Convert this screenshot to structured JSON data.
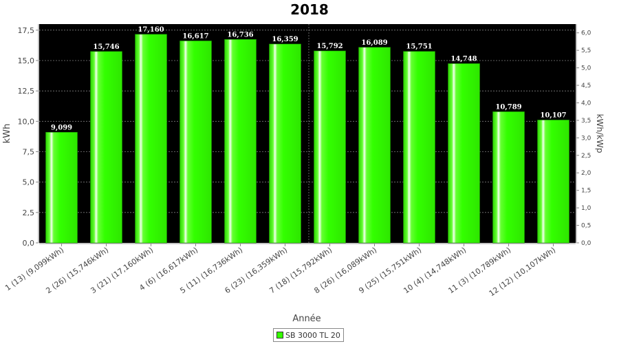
{
  "chart_data": {
    "type": "bar",
    "title": "2018",
    "xlabel": "Année",
    "ylabel": "kWh",
    "y2label": "kWh/kWp",
    "categories": [
      "1 (13)  (9,099kWh)",
      "2 (26)  (15,746kWh)",
      "3 (21)  (17,160kWh)",
      "4 (6)  (16,617kWh)",
      "5 (11)  (16,736kWh)",
      "6 (23)  (16,359kWh)",
      "7 (18)  (15,792kWh)",
      "8 (26)  (16,089kWh)",
      "9 (25)  (15,751kWh)",
      "10 (4)  (14,748kWh)",
      "11 (3)  (10,789kWh)",
      "12 (12)  (10,107kWh)"
    ],
    "series": [
      {
        "name": "SB 3000 TL 20",
        "values": [
          9.099,
          15.746,
          17.16,
          16.617,
          16.736,
          16.359,
          15.792,
          16.089,
          15.751,
          14.748,
          10.789,
          10.107
        ],
        "labels": [
          "9,099",
          "15,746",
          "17,160",
          "16,617",
          "16,736",
          "16,359",
          "15,792",
          "16,089",
          "15,751",
          "14,748",
          "10,789",
          "10,107"
        ]
      }
    ],
    "ylim": [
      0,
      18
    ],
    "yticks": [
      "0,0",
      "2,5",
      "5,0",
      "7,5",
      "10,0",
      "12,5",
      "15,0",
      "17,5"
    ],
    "y2lim": [
      0,
      6.25
    ],
    "y2ticks": [
      "0,0",
      "0,5",
      "1,0",
      "1,5",
      "2,0",
      "2,5",
      "3,0",
      "3,5",
      "4,0",
      "4,5",
      "5,0",
      "5,5",
      "6,0"
    ],
    "grid": true,
    "legend_position": "bottom-center",
    "colors": {
      "bar": "#33ff00",
      "plot_background": "#000000",
      "grid": "#808080"
    }
  }
}
